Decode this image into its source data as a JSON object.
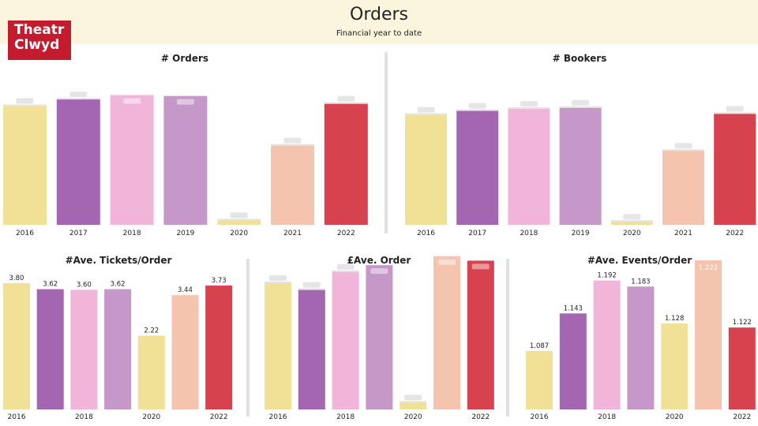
{
  "header": {
    "title": "Orders",
    "subtitle": "Financial year to date"
  },
  "logo": {
    "line1": "Theatr",
    "line2": "Clwyd"
  },
  "colors": {
    "header_bg": "#fcf5dd",
    "logo_bg": "#c31c2e",
    "2016": "#f0e196",
    "2017": "#a566b1",
    "2018": "#f2b5da",
    "2019": "#c598c9",
    "2020": "#f0e196",
    "2021": "#f5c4ae",
    "2022": "#d6434f"
  },
  "chart_data": [
    {
      "id": "orders",
      "type": "bar",
      "title": "# Orders",
      "categories": [
        "2016",
        "2017",
        "2018",
        "2019",
        "2020",
        "2021",
        "2022"
      ],
      "values": [
        270,
        285,
        295,
        293,
        10,
        180,
        275
      ],
      "ylim": [
        0,
        330
      ],
      "x_tick_labels": [
        "2016",
        "2017",
        "2018",
        "2019",
        "2020",
        "2021",
        "2022"
      ],
      "data_labels": [
        "",
        "",
        "",
        "",
        "",
        "",
        ""
      ],
      "data_labels_visible": false
    },
    {
      "id": "bookers",
      "type": "bar",
      "title": "# Bookers",
      "categories": [
        "2016",
        "2017",
        "2018",
        "2019",
        "2020",
        "2021",
        "2022"
      ],
      "values": [
        220,
        228,
        232,
        234,
        6,
        148,
        222
      ],
      "ylim": [
        0,
        300
      ],
      "x_tick_labels": [
        "2016",
        "2017",
        "2018",
        "2019",
        "2020",
        "2021",
        "2022"
      ],
      "data_labels": [
        "",
        "",
        "",
        "",
        "",
        "",
        ""
      ],
      "data_labels_visible": false
    },
    {
      "id": "tickets",
      "type": "bar",
      "title": "#Ave. Tickets/Order",
      "categories": [
        "2016",
        "2017",
        "2018",
        "2019",
        "2020",
        "2021",
        "2022"
      ],
      "values": [
        3.8,
        3.62,
        3.6,
        3.62,
        2.22,
        3.44,
        3.73
      ],
      "ylim": [
        0,
        4.75
      ],
      "x_tick_labels": [
        "2016",
        "",
        "2018",
        "",
        "2020",
        "",
        "2022"
      ],
      "data_labels": [
        "3.80",
        "3.62",
        "3.60",
        "3.62",
        "2.22",
        "3.44",
        "3.73"
      ],
      "data_labels_visible": true
    },
    {
      "id": "avgorder",
      "type": "bar",
      "title": "£Ave. Order",
      "categories": [
        "2016",
        "2017",
        "2018",
        "2019",
        "2020",
        "2021",
        "2022"
      ],
      "values": [
        56,
        53,
        61,
        64,
        3,
        68,
        66
      ],
      "ylim": [
        0,
        70
      ],
      "x_tick_labels": [
        "2016",
        "",
        "2018",
        "",
        "2020",
        "",
        "2022"
      ],
      "data_labels": [
        "",
        "",
        "",
        "",
        "",
        "",
        ""
      ],
      "data_labels_visible": false
    },
    {
      "id": "events",
      "type": "bar",
      "title": "#Ave. Events/Order",
      "categories": [
        "2016",
        "2017",
        "2018",
        "2019",
        "2020",
        "2021",
        "2022"
      ],
      "values": [
        1.087,
        1.143,
        1.192,
        1.183,
        1.128,
        1.222,
        1.122
      ],
      "ylim": [
        1.0,
        1.235
      ],
      "x_tick_labels": [
        "2016",
        "",
        "2018",
        "",
        "2020",
        "",
        "2022"
      ],
      "data_labels": [
        "1.087",
        "1.143",
        "1.192",
        "1.183",
        "1.128",
        "1.222",
        "1.122"
      ],
      "data_labels_visible": true
    }
  ]
}
